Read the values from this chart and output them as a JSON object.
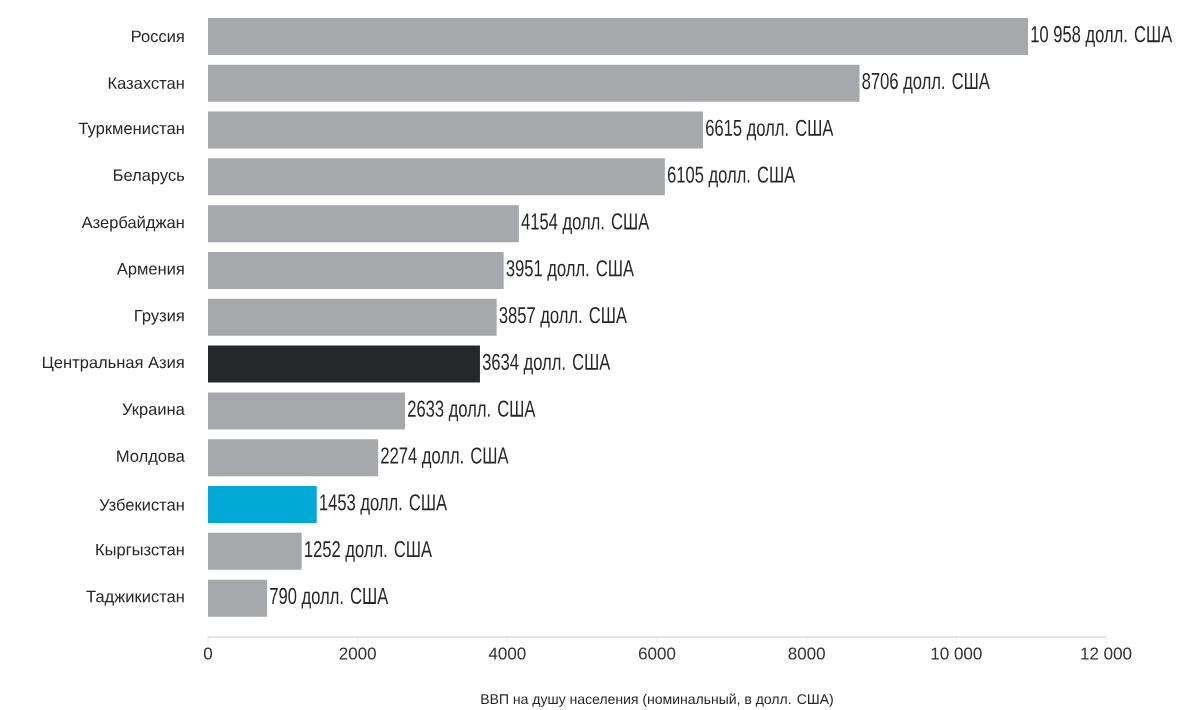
{
  "chart_data": {
    "type": "bar",
    "orientation": "horizontal",
    "xlabel": "ВВП на душу населения (номинальный, в долл. США)",
    "categories": [
      "Россия",
      "Казахстан",
      "Туркменистан",
      "Беларусь",
      "Азербайджан",
      "Армения",
      "Грузия",
      "Центральная Азия",
      "Украина",
      "Молдова",
      "Узбекистан",
      "Кыргызстан",
      "Таджикистан"
    ],
    "values": [
      10958,
      8706,
      6615,
      6105,
      4154,
      3951,
      3857,
      3634,
      2633,
      2274,
      1453,
      1252,
      790
    ],
    "value_labels": [
      "10 958 долл. США",
      "8706 долл. США",
      "6615 долл. США",
      "6105 долл. США",
      "4154 долл. США",
      "3951 долл. США",
      "3857 долл. США",
      "3634 долл. США",
      "2633 долл. США",
      "2274 долл. США",
      "1453 долл. США",
      "1252 долл. США",
      "790 долл. США"
    ],
    "colors": [
      "#a7a8ab",
      "#a7a8ab",
      "#a7a8ab",
      "#a7a8ab",
      "#a7a8ab",
      "#a7a8ab",
      "#a7a8ab",
      "#25282b",
      "#a7a8ab",
      "#a7a8ab",
      "#00a9d6",
      "#a7a8ab",
      "#a7a8ab"
    ],
    "xlim": [
      0,
      12000
    ],
    "xticks": [
      0,
      2000,
      4000,
      6000,
      8000,
      {
        "value": 10000,
        "label": "10 000"
      },
      {
        "value": 12000,
        "label": "12 000"
      }
    ],
    "grid": false
  }
}
